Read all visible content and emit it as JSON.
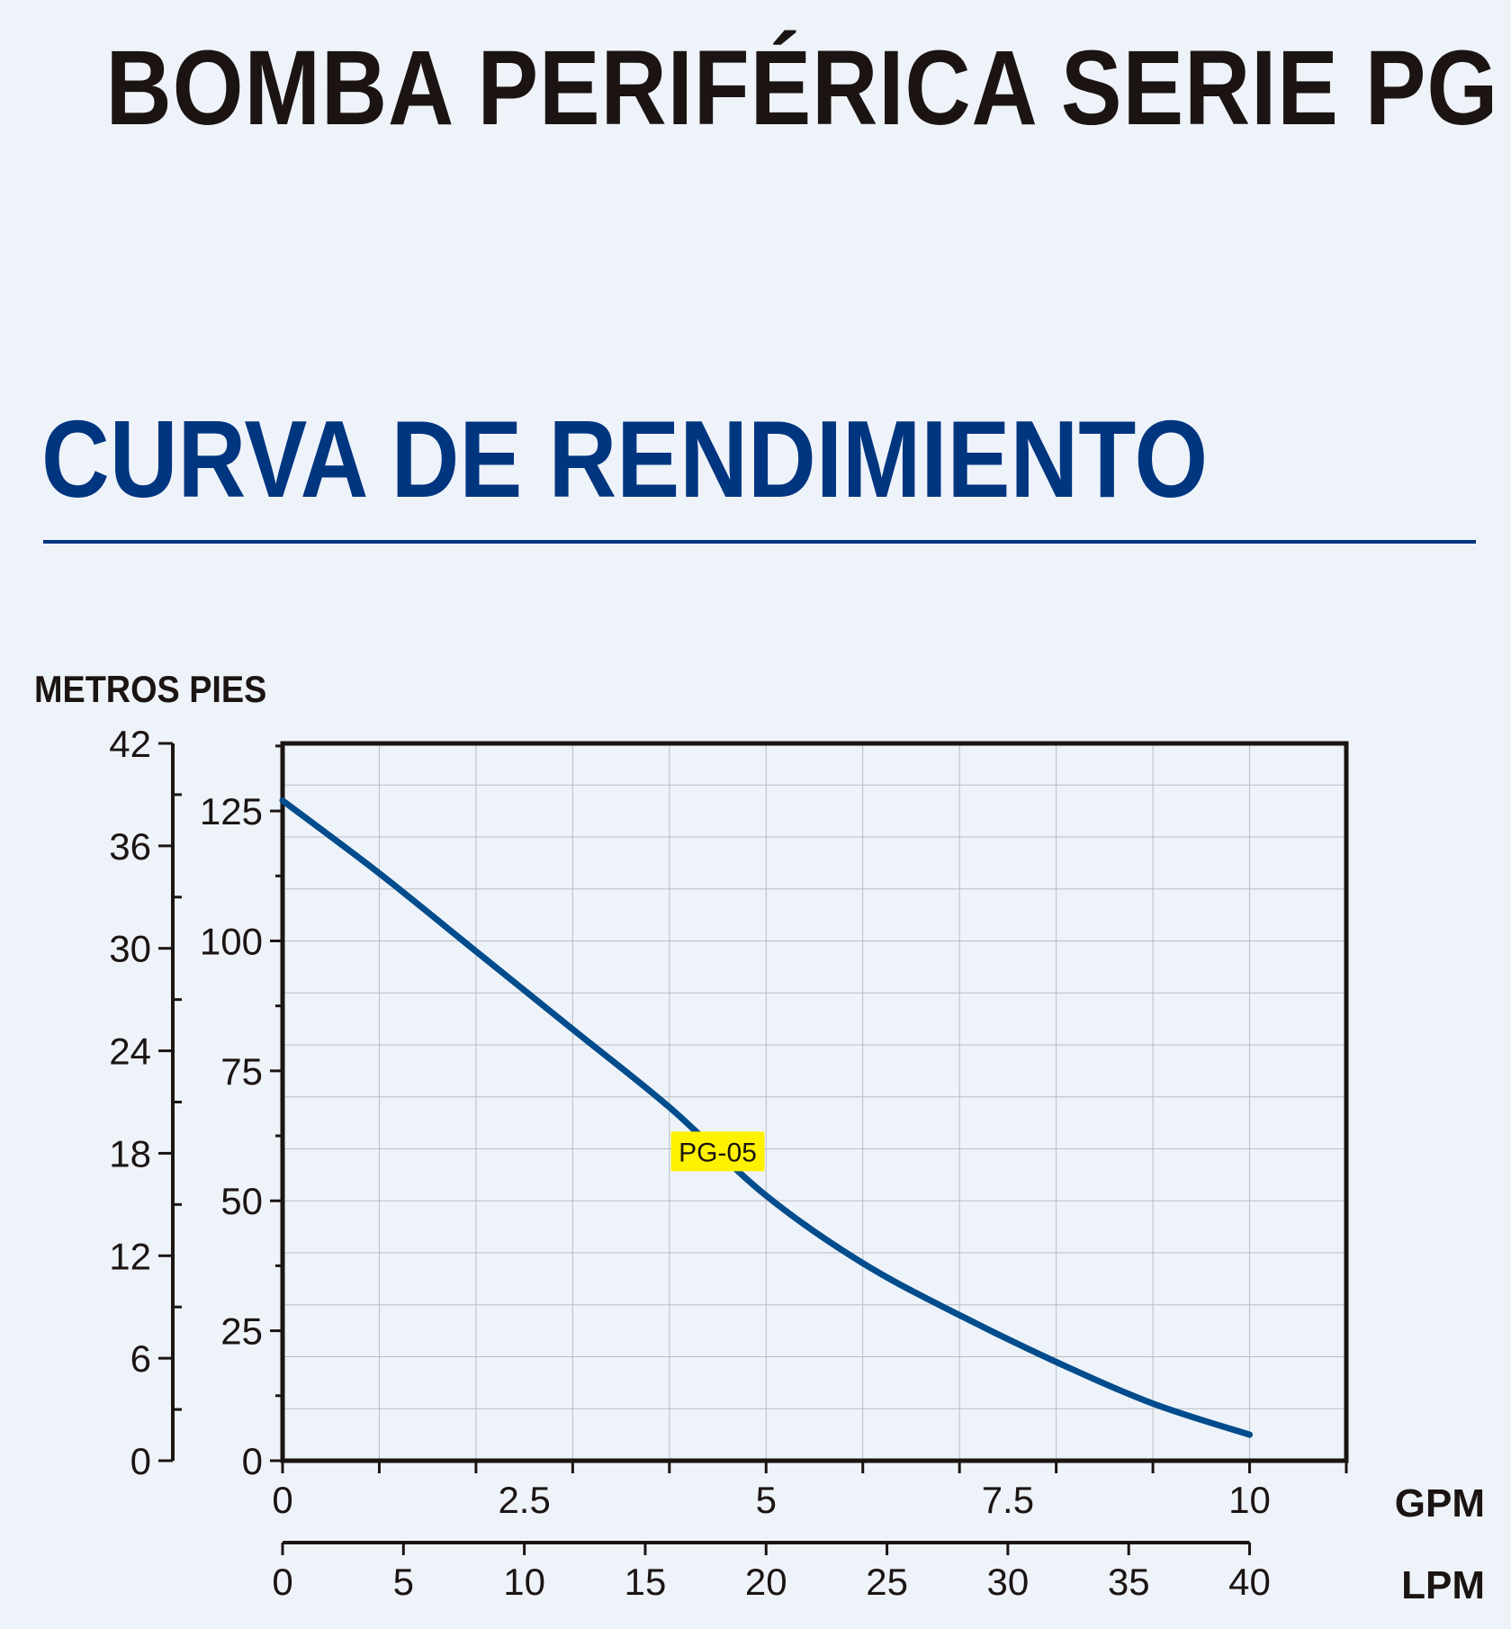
{
  "header": {
    "title": "BOMBA PERIFÉRICA SERIE PG",
    "section_title": "CURVA DE RENDIMIENTO",
    "axis_units_label": "METROS PIES"
  },
  "colors": {
    "background": "#eef3fa",
    "title": "#1b1412",
    "accent": "#003580",
    "curve": "#004c8c",
    "label_bg": "#fff200",
    "grid": "#b8bcc2"
  },
  "chart_data": {
    "type": "line",
    "x_unit_primary": "GPM",
    "x_unit_secondary": "LPM",
    "y_unit_outer": "METROS",
    "y_unit_inner": "PIES",
    "xlim_gpm": [
      0,
      11
    ],
    "ylim_pies": [
      0,
      138
    ],
    "ylim_metros": [
      0,
      42
    ],
    "x_ticks_gpm": [
      "0",
      "2.5",
      "5",
      "7.5",
      "10"
    ],
    "x_ticks_lpm": [
      "0",
      "5",
      "10",
      "15",
      "20",
      "25",
      "30",
      "35",
      "40"
    ],
    "y_ticks_pies": [
      "0",
      "25",
      "50",
      "75",
      "100",
      "125"
    ],
    "y_ticks_metros": [
      "0",
      "6",
      "12",
      "18",
      "24",
      "30",
      "36",
      "42"
    ],
    "grid": true,
    "series": [
      {
        "name": "PG-05",
        "x_gpm": [
          0,
          1,
          2,
          3,
          4,
          5,
          6,
          7,
          8,
          9,
          10
        ],
        "y_pies": [
          127,
          113,
          98,
          83,
          68,
          51,
          38,
          28,
          19,
          11,
          5
        ]
      }
    ]
  }
}
